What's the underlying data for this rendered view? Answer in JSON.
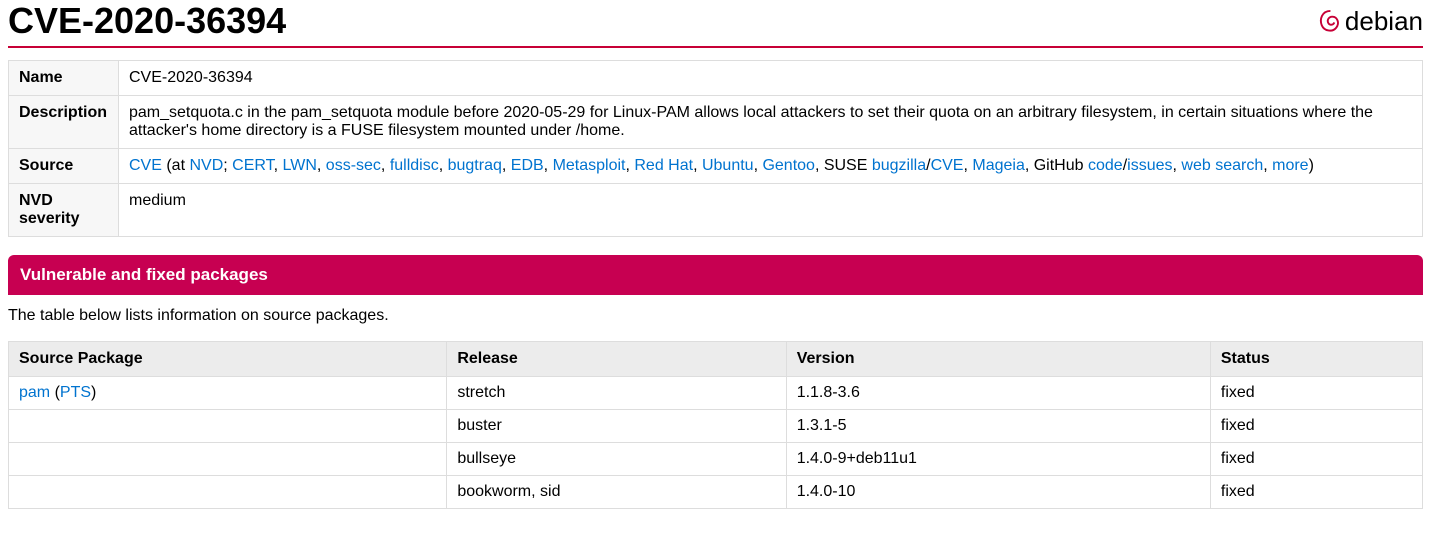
{
  "header": {
    "title": "CVE-2020-36394",
    "logo_text": "debian"
  },
  "info": {
    "name_label": "Name",
    "name_value": "CVE-2020-36394",
    "desc_label": "Description",
    "desc_value": "pam_setquota.c in the pam_setquota module before 2020-05-29 for Linux-PAM allows local attackers to set their quota on an arbitrary filesystem, in certain situations where the attacker's home directory is a FUSE filesystem mounted under /home.",
    "source_label": "Source",
    "source": {
      "cve": "CVE",
      "at": " (at ",
      "nvd": "NVD",
      "semi": "; ",
      "cert": "CERT",
      "lwn": "LWN",
      "osssec": "oss-sec",
      "fulldisc": "fulldisc",
      "bugtraq": "bugtraq",
      "edb": "EDB",
      "metasploit": "Metasploit",
      "redhat": "Red Hat",
      "ubuntu": "Ubuntu",
      "gentoo": "Gentoo",
      "suse": ", SUSE ",
      "bugzilla": "bugzilla",
      "slash": "/",
      "cve2": "CVE",
      "mageia": "Mageia",
      "github": ", GitHub ",
      "code": "code",
      "issues": "issues",
      "websearch": "web search",
      "more": "more",
      "comma": ", ",
      "close": ")"
    },
    "nvd_label": "NVD severity",
    "nvd_value": "medium"
  },
  "section": {
    "heading": "Vulnerable and fixed packages",
    "intro": "The table below lists information on source packages."
  },
  "pkg_table": {
    "headers": {
      "package": "Source Package",
      "release": "Release",
      "version": "Version",
      "status": "Status"
    },
    "rows": [
      {
        "pkg_link": "pam",
        "pkg_open": " (",
        "pts": "PTS",
        "pkg_close": ")",
        "release": "stretch",
        "version": "1.1.8-3.6",
        "status": "fixed"
      },
      {
        "pkg_link": "",
        "pkg_open": "",
        "pts": "",
        "pkg_close": "",
        "release": "buster",
        "version": "1.3.1-5",
        "status": "fixed"
      },
      {
        "pkg_link": "",
        "pkg_open": "",
        "pts": "",
        "pkg_close": "",
        "release": "bullseye",
        "version": "1.4.0-9+deb11u1",
        "status": "fixed"
      },
      {
        "pkg_link": "",
        "pkg_open": "",
        "pts": "",
        "pkg_close": "",
        "release": "bookworm, sid",
        "version": "1.4.0-10",
        "status": "fixed"
      }
    ]
  }
}
